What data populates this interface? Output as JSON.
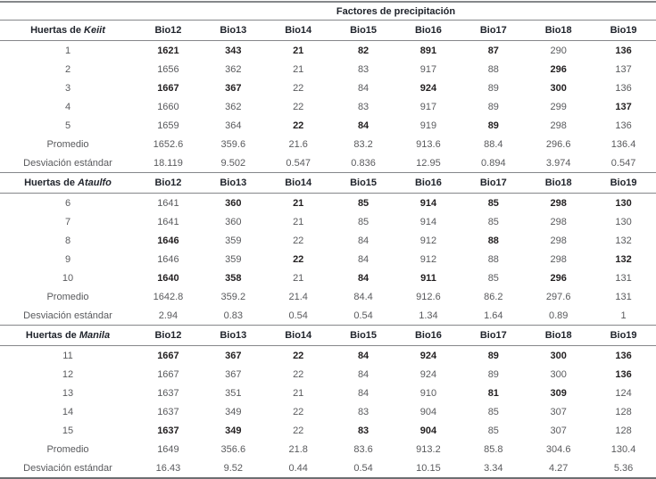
{
  "table": {
    "title": "Factores de precipitación",
    "columns": [
      "Bio12",
      "Bio13",
      "Bio14",
      "Bio15",
      "Bio16",
      "Bio17",
      "Bio18",
      "Bio19"
    ],
    "colors": {
      "header_text": "#20242c",
      "value_text": "#595a5d",
      "bold_value_text": "#221f20",
      "rule": "#85878a"
    },
    "sections": [
      {
        "label_prefix": "Huertas de ",
        "label_species": "Keiit",
        "rows": [
          {
            "label": "1",
            "values": [
              "1621",
              "343",
              "21",
              "82",
              "891",
              "87",
              "290",
              "136"
            ],
            "bold": [
              1,
              1,
              1,
              1,
              1,
              1,
              0,
              1
            ]
          },
          {
            "label": "2",
            "values": [
              "1656",
              "362",
              "21",
              "83",
              "917",
              "88",
              "296",
              "137"
            ],
            "bold": [
              0,
              0,
              0,
              0,
              0,
              0,
              1,
              0
            ]
          },
          {
            "label": "3",
            "values": [
              "1667",
              "367",
              "22",
              "84",
              "924",
              "89",
              "300",
              "136"
            ],
            "bold": [
              1,
              1,
              0,
              0,
              1,
              0,
              1,
              0
            ]
          },
          {
            "label": "4",
            "values": [
              "1660",
              "362",
              "22",
              "83",
              "917",
              "89",
              "299",
              "137"
            ],
            "bold": [
              0,
              0,
              0,
              0,
              0,
              0,
              0,
              1
            ]
          },
          {
            "label": "5",
            "values": [
              "1659",
              "364",
              "22",
              "84",
              "919",
              "89",
              "298",
              "136"
            ],
            "bold": [
              0,
              0,
              1,
              1,
              0,
              1,
              0,
              0
            ]
          },
          {
            "label": "Promedio",
            "values": [
              "1652.6",
              "359.6",
              "21.6",
              "83.2",
              "913.6",
              "88.4",
              "296.6",
              "136.4"
            ],
            "bold": [
              0,
              0,
              0,
              0,
              0,
              0,
              0,
              0
            ]
          },
          {
            "label": "Desviación estándar",
            "values": [
              "18.119",
              "9.502",
              "0.547",
              "0.836",
              "12.95",
              "0.894",
              "3.974",
              "0.547"
            ],
            "bold": [
              0,
              0,
              0,
              0,
              0,
              0,
              0,
              0
            ]
          }
        ]
      },
      {
        "label_prefix": "Huertas de ",
        "label_species": "Ataulfo",
        "rows": [
          {
            "label": "6",
            "values": [
              "1641",
              "360",
              "21",
              "85",
              "914",
              "85",
              "298",
              "130"
            ],
            "bold": [
              0,
              1,
              1,
              1,
              1,
              1,
              1,
              1
            ]
          },
          {
            "label": "7",
            "values": [
              "1641",
              "360",
              "21",
              "85",
              "914",
              "85",
              "298",
              "130"
            ],
            "bold": [
              0,
              0,
              0,
              0,
              0,
              0,
              0,
              0
            ]
          },
          {
            "label": "8",
            "values": [
              "1646",
              "359",
              "22",
              "84",
              "912",
              "88",
              "298",
              "132"
            ],
            "bold": [
              1,
              0,
              0,
              0,
              0,
              1,
              0,
              0
            ]
          },
          {
            "label": "9",
            "values": [
              "1646",
              "359",
              "22",
              "84",
              "912",
              "88",
              "298",
              "132"
            ],
            "bold": [
              0,
              0,
              1,
              0,
              0,
              0,
              0,
              1
            ]
          },
          {
            "label": "10",
            "values": [
              "1640",
              "358",
              "21",
              "84",
              "911",
              "85",
              "296",
              "131"
            ],
            "bold": [
              1,
              1,
              0,
              1,
              1,
              0,
              1,
              0
            ]
          },
          {
            "label": "Promedio",
            "values": [
              "1642.8",
              "359.2",
              "21.4",
              "84.4",
              "912.6",
              "86.2",
              "297.6",
              "131"
            ],
            "bold": [
              0,
              0,
              0,
              0,
              0,
              0,
              0,
              0
            ]
          },
          {
            "label": "Desviación estándar",
            "values": [
              "2.94",
              "0.83",
              "0.54",
              "0.54",
              "1.34",
              "1.64",
              "0.89",
              "1"
            ],
            "bold": [
              0,
              0,
              0,
              0,
              0,
              0,
              0,
              0
            ]
          }
        ]
      },
      {
        "label_prefix": "Huertas de ",
        "label_species": "Manila",
        "rows": [
          {
            "label": "11",
            "values": [
              "1667",
              "367",
              "22",
              "84",
              "924",
              "89",
              "300",
              "136"
            ],
            "bold": [
              1,
              1,
              1,
              1,
              1,
              1,
              1,
              1
            ]
          },
          {
            "label": "12",
            "values": [
              "1667",
              "367",
              "22",
              "84",
              "924",
              "89",
              "300",
              "136"
            ],
            "bold": [
              0,
              0,
              0,
              0,
              0,
              0,
              0,
              1
            ]
          },
          {
            "label": "13",
            "values": [
              "1637",
              "351",
              "21",
              "84",
              "910",
              "81",
              "309",
              "124"
            ],
            "bold": [
              0,
              0,
              0,
              0,
              0,
              1,
              1,
              0
            ]
          },
          {
            "label": "14",
            "values": [
              "1637",
              "349",
              "22",
              "83",
              "904",
              "85",
              "307",
              "128"
            ],
            "bold": [
              0,
              0,
              0,
              0,
              0,
              0,
              0,
              0
            ]
          },
          {
            "label": "15",
            "values": [
              "1637",
              "349",
              "22",
              "83",
              "904",
              "85",
              "307",
              "128"
            ],
            "bold": [
              1,
              1,
              0,
              1,
              1,
              0,
              0,
              0
            ]
          },
          {
            "label": "Promedio",
            "values": [
              "1649",
              "356.6",
              "21.8",
              "83.6",
              "913.2",
              "85.8",
              "304.6",
              "130.4"
            ],
            "bold": [
              0,
              0,
              0,
              0,
              0,
              0,
              0,
              0
            ]
          },
          {
            "label": "Desviación estándar",
            "values": [
              "16.43",
              "9.52",
              "0.44",
              "0.54",
              "10.15",
              "3.34",
              "4.27",
              "5.36"
            ],
            "bold": [
              0,
              0,
              0,
              0,
              0,
              0,
              0,
              0
            ]
          }
        ]
      }
    ]
  }
}
